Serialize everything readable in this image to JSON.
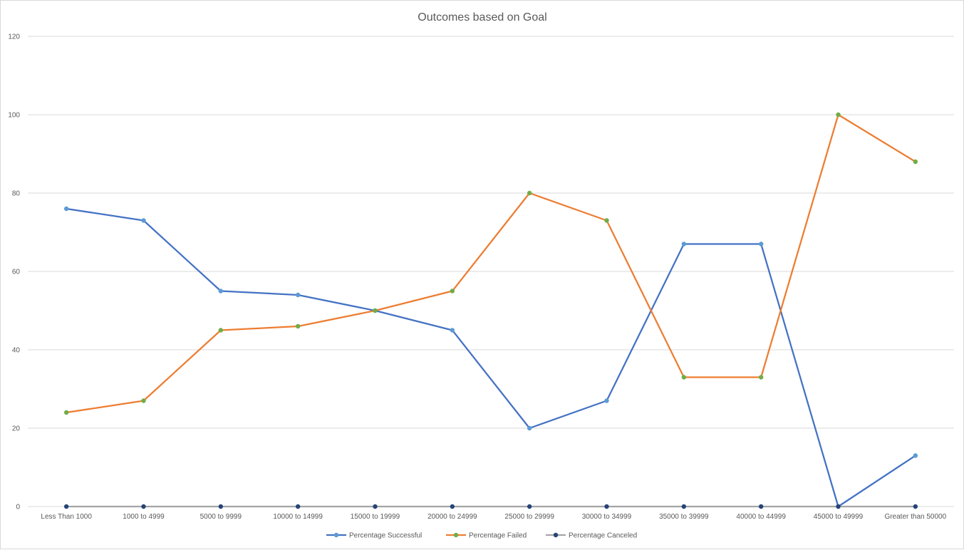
{
  "chart_data": {
    "type": "line",
    "title": "Outcomes based on Goal",
    "xlabel": "",
    "ylabel": "",
    "ylim": [
      0,
      120
    ],
    "yticks": [
      0,
      20,
      40,
      60,
      80,
      100,
      120
    ],
    "grid": "horizontal",
    "legend_position": "bottom",
    "categories": [
      "Less Than 1000",
      "1000 to 4999",
      "5000 to 9999",
      "10000 to 14999",
      "15000 to 19999",
      "20000 to 24999",
      "25000 to 29999",
      "30000 to 34999",
      "35000 to 39999",
      "40000 to 44999",
      "45000 to 49999",
      "Greater than 50000"
    ],
    "series": [
      {
        "name": "Percentage Successful",
        "color": "#4472c4",
        "marker_color": "#5b9bd5",
        "values": [
          76,
          73,
          55,
          54,
          50,
          45,
          20,
          27,
          67,
          67,
          0,
          13
        ]
      },
      {
        "name": "Percentage Failed",
        "color": "#ed7d31",
        "marker_color": "#70ad47",
        "values": [
          24,
          27,
          45,
          46,
          50,
          55,
          80,
          73,
          33,
          33,
          100,
          88
        ]
      },
      {
        "name": "Percentage Canceled",
        "color": "#a5a5a5",
        "marker_color": "#264478",
        "values": [
          0,
          0,
          0,
          0,
          0,
          0,
          0,
          0,
          0,
          0,
          0,
          0
        ]
      }
    ]
  }
}
